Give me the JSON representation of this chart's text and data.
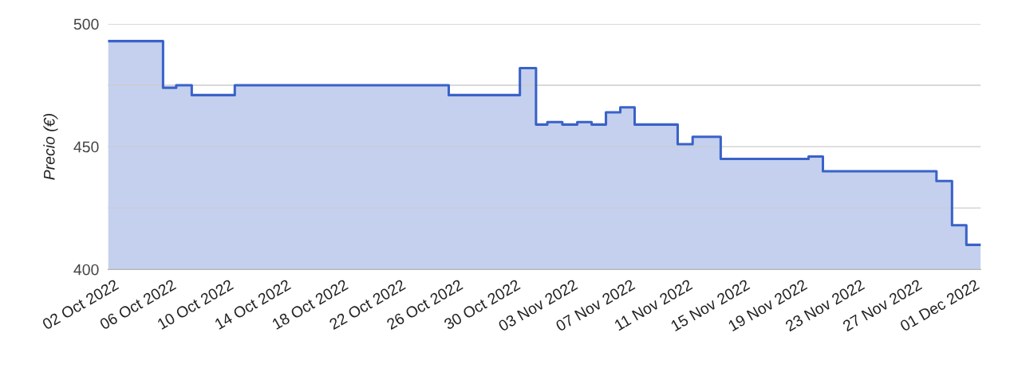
{
  "chart_data": {
    "type": "area",
    "ylabel": "Precio (€)",
    "x": [
      "2022-10-01T14:00",
      "2022-10-05T10:00",
      "2022-10-05T10:00",
      "2022-10-06T08:00",
      "2022-10-06T08:00",
      "2022-10-07T10:00",
      "2022-10-07T10:00",
      "2022-10-10T10:00",
      "2022-10-10T10:00",
      "2022-10-25T08:00",
      "2022-10-25T08:00",
      "2022-10-30T07:00",
      "2022-10-30T07:00",
      "2022-10-31T10:00",
      "2022-10-31T10:00",
      "2022-11-01T05:00",
      "2022-11-01T05:00",
      "2022-11-02T06:00",
      "2022-11-02T06:00",
      "2022-11-03T07:00",
      "2022-11-03T07:00",
      "2022-11-04T07:00",
      "2022-11-04T07:00",
      "2022-11-05T07:00",
      "2022-11-05T07:00",
      "2022-11-06T07:00",
      "2022-11-06T07:00",
      "2022-11-07T07:00",
      "2022-11-07T07:00",
      "2022-11-10T07:00",
      "2022-11-10T07:00",
      "2022-11-11T08:00",
      "2022-11-11T08:00",
      "2022-11-13T07:00",
      "2022-11-13T07:00",
      "2022-11-19T10:00",
      "2022-11-19T10:00",
      "2022-11-20T10:00",
      "2022-11-20T10:00",
      "2022-11-28T08:00",
      "2022-11-28T08:00",
      "2022-11-29T10:00",
      "2022-11-29T10:00",
      "2022-11-30T10:00",
      "2022-11-30T10:00",
      "2022-12-01T10:00"
    ],
    "series": [
      {
        "color": "#3a62c8",
        "values": [
          493,
          493,
          474,
          474,
          475,
          475,
          471,
          471,
          475,
          475,
          471,
          471,
          482,
          482,
          459,
          459,
          460,
          460,
          459,
          459,
          460,
          460,
          459,
          459,
          464,
          464,
          466,
          466,
          459,
          459,
          451,
          451,
          454,
          454,
          445,
          445,
          446,
          446,
          440,
          440,
          436,
          436,
          418,
          418,
          410,
          410
        ]
      }
    ],
    "xlim": [
      "2022-10-01T14:00",
      "2022-12-01T10:00"
    ],
    "xticks": [
      {
        "value": "2022-10-02",
        "label": "02 Oct 2022"
      },
      {
        "value": "2022-10-06",
        "label": "06 Oct 2022"
      },
      {
        "value": "2022-10-10",
        "label": "10 Oct 2022"
      },
      {
        "value": "2022-10-14",
        "label": "14 Oct 2022"
      },
      {
        "value": "2022-10-18",
        "label": "18 Oct 2022"
      },
      {
        "value": "2022-10-22",
        "label": "22 Oct 2022"
      },
      {
        "value": "2022-10-26",
        "label": "26 Oct 2022"
      },
      {
        "value": "2022-10-30",
        "label": "30 Oct 2022"
      },
      {
        "value": "2022-11-03",
        "label": "03 Nov 2022"
      },
      {
        "value": "2022-11-07",
        "label": "07 Nov 2022"
      },
      {
        "value": "2022-11-11",
        "label": "11 Nov 2022"
      },
      {
        "value": "2022-11-15",
        "label": "15 Nov 2022"
      },
      {
        "value": "2022-11-19",
        "label": "19 Nov 2022"
      },
      {
        "value": "2022-11-23",
        "label": "23 Nov 2022"
      },
      {
        "value": "2022-11-27",
        "label": "27 Nov 2022"
      },
      {
        "value": "2022-12-01",
        "label": "01 Dec 2022"
      }
    ],
    "ylim": [
      400,
      500
    ],
    "yticks": [
      400,
      {
        "value": 425,
        "label": null
      },
      450,
      {
        "value": 475,
        "label": null
      },
      500
    ],
    "grid": "y",
    "legend": false
  }
}
